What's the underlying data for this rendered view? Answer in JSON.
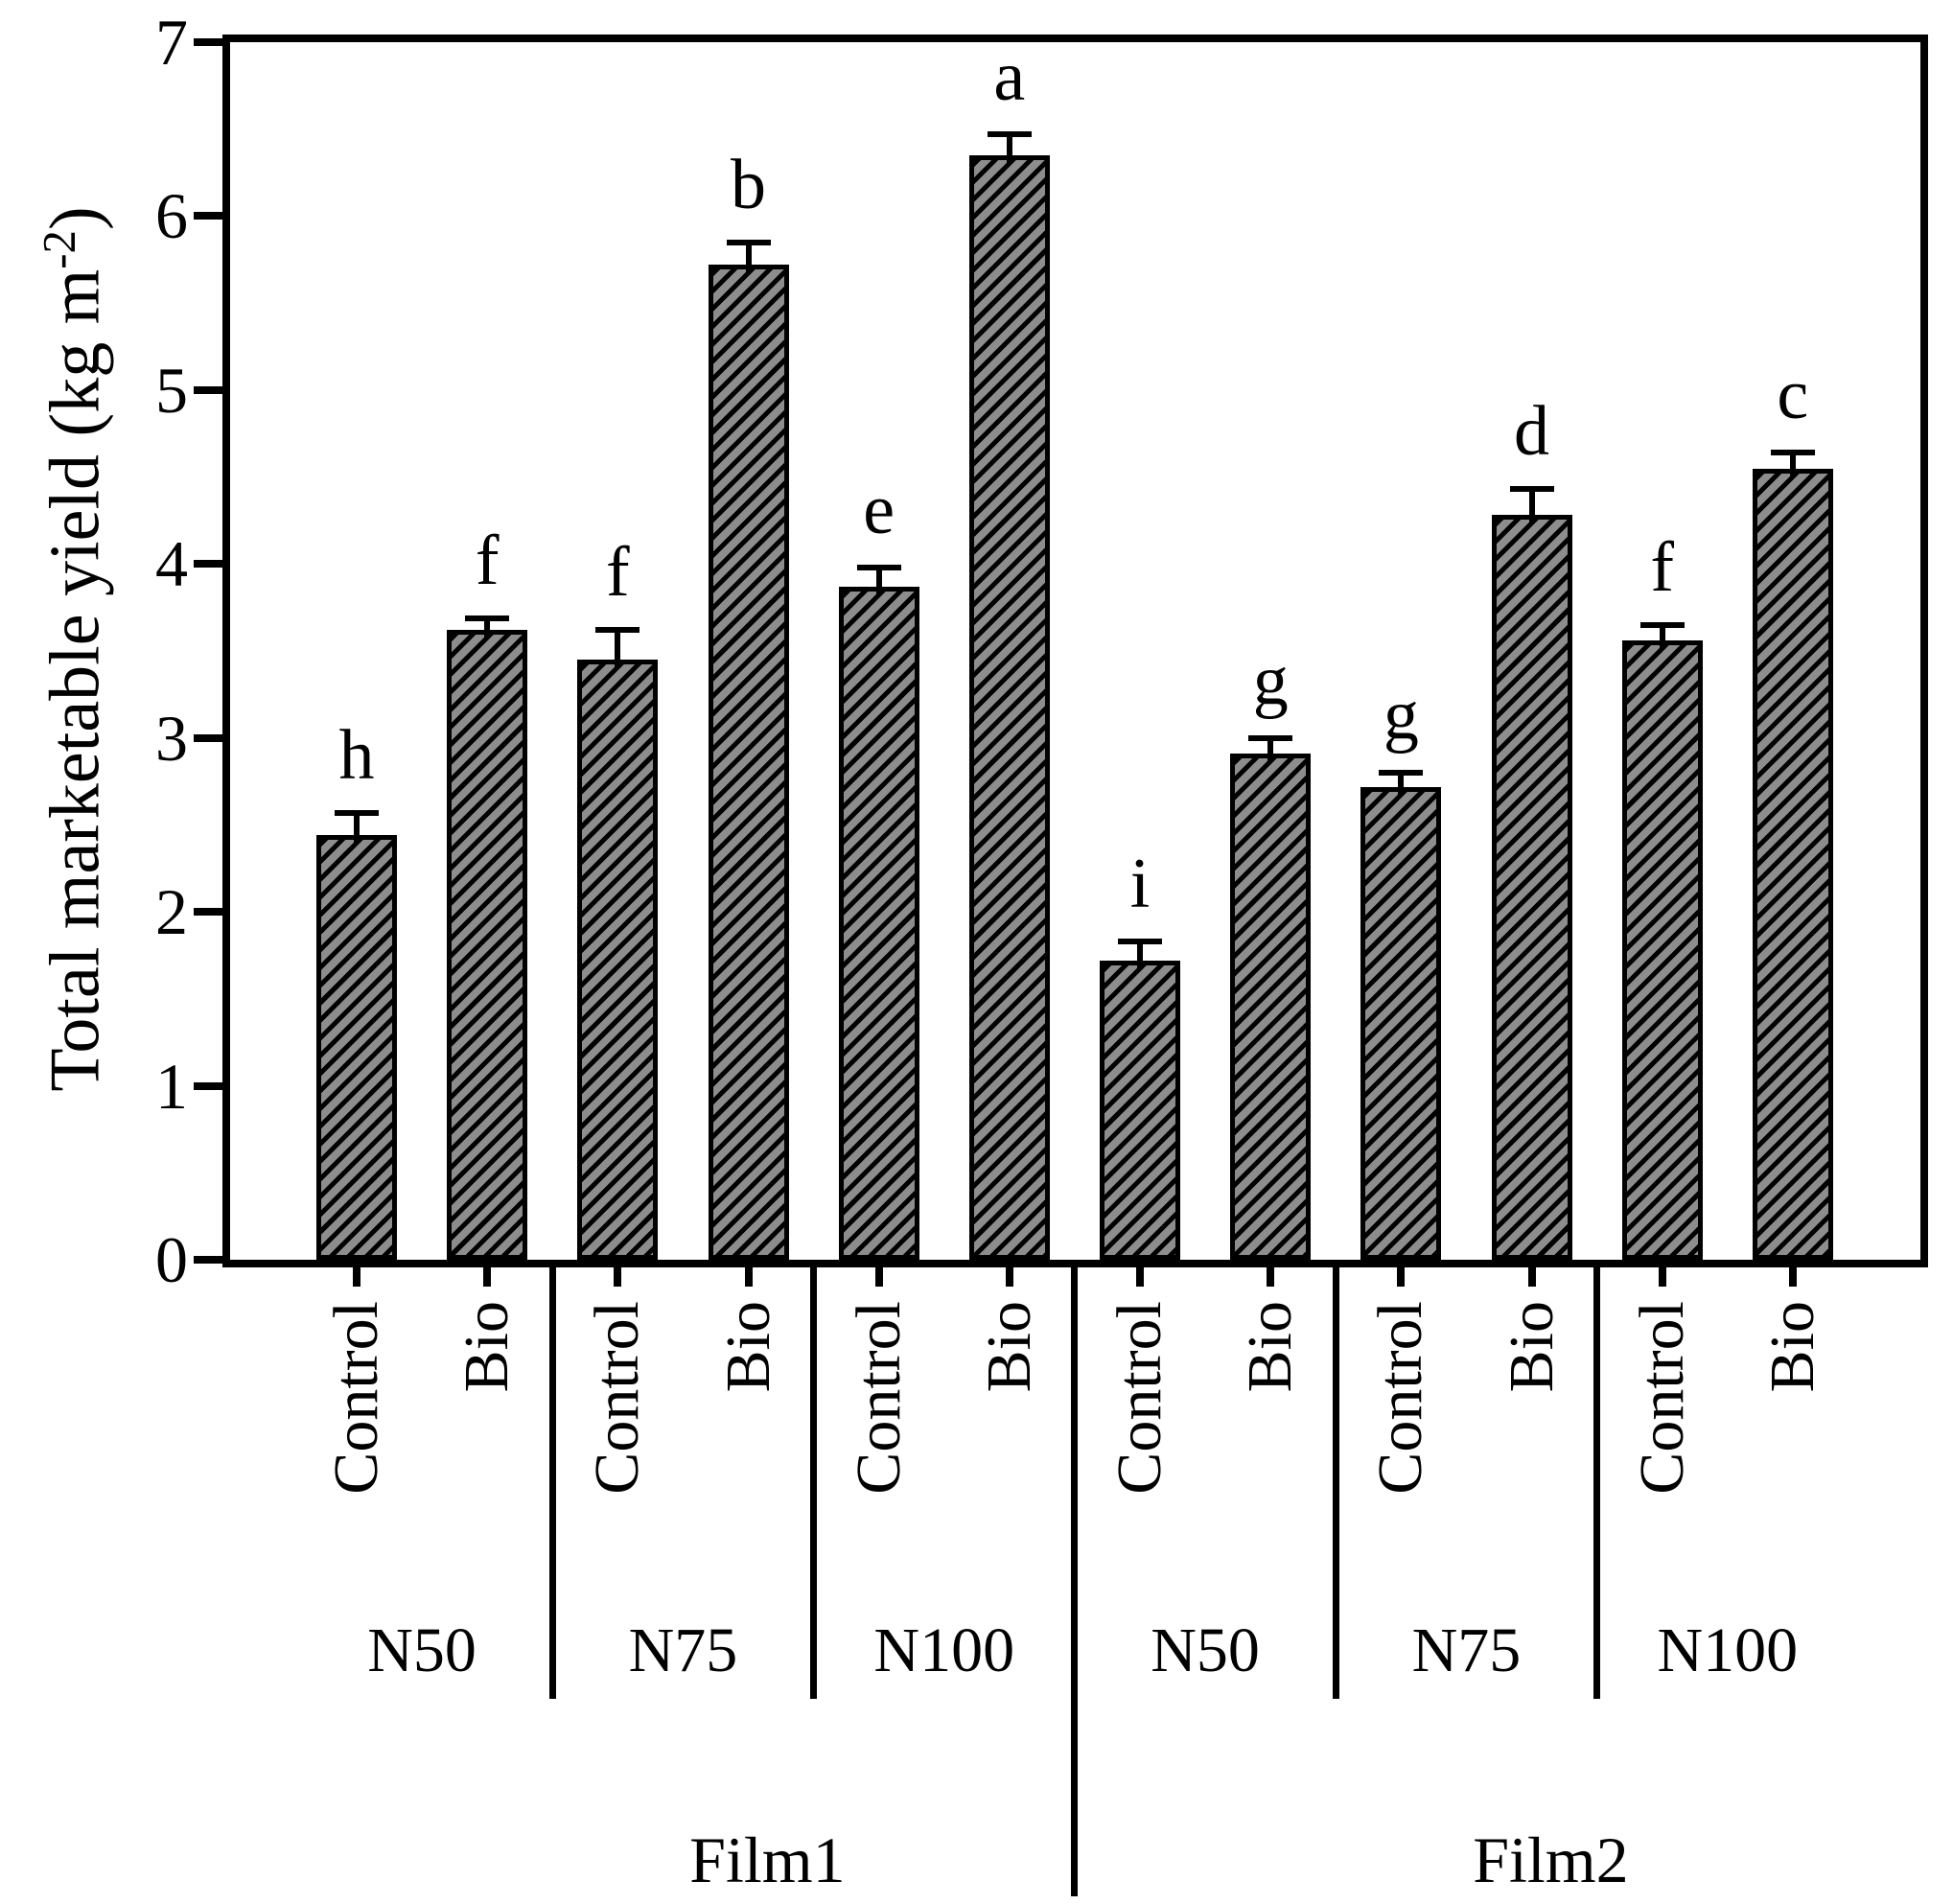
{
  "chart_data": {
    "type": "bar",
    "title": "",
    "y_axis": {
      "label_main": "Total marketable yield (kg m",
      "label_sup": "-2",
      "label_close": ")",
      "min": 0,
      "max": 7,
      "ticks": [
        0,
        1,
        2,
        3,
        4,
        5,
        6,
        7
      ]
    },
    "x_axis": {
      "treatment_labels": [
        "Control",
        "Bio"
      ],
      "films": [
        {
          "label": "Film1",
          "n_groups": [
            "N50",
            "N75",
            "N100"
          ]
        },
        {
          "label": "Film2",
          "n_groups": [
            "N50",
            "N75",
            "N100"
          ]
        }
      ]
    },
    "bars": [
      {
        "film": "Film1",
        "n": "N50",
        "treatment": "Control",
        "value": 2.44,
        "se": 0.13,
        "letter": "h"
      },
      {
        "film": "Film1",
        "n": "N50",
        "treatment": "Bio",
        "value": 3.62,
        "se": 0.07,
        "letter": "f"
      },
      {
        "film": "Film1",
        "n": "N75",
        "treatment": "Control",
        "value": 3.45,
        "se": 0.17,
        "letter": "f"
      },
      {
        "film": "Film1",
        "n": "N75",
        "treatment": "Bio",
        "value": 5.72,
        "se": 0.13,
        "letter": "b"
      },
      {
        "film": "Film1",
        "n": "N100",
        "treatment": "Control",
        "value": 3.87,
        "se": 0.11,
        "letter": "e"
      },
      {
        "film": "Film1",
        "n": "N100",
        "treatment": "Bio",
        "value": 6.35,
        "se": 0.12,
        "letter": "a"
      },
      {
        "film": "Film2",
        "n": "N50",
        "treatment": "Control",
        "value": 1.72,
        "se": 0.11,
        "letter": "i"
      },
      {
        "film": "Film2",
        "n": "N50",
        "treatment": "Bio",
        "value": 2.91,
        "se": 0.09,
        "letter": "g"
      },
      {
        "film": "Film2",
        "n": "N75",
        "treatment": "Control",
        "value": 2.72,
        "se": 0.08,
        "letter": "g"
      },
      {
        "film": "Film2",
        "n": "N75",
        "treatment": "Bio",
        "value": 4.28,
        "se": 0.15,
        "letter": "d"
      },
      {
        "film": "Film2",
        "n": "N100",
        "treatment": "Control",
        "value": 3.56,
        "se": 0.09,
        "letter": "f"
      },
      {
        "film": "Film2",
        "n": "N100",
        "treatment": "Bio",
        "value": 4.55,
        "se": 0.09,
        "letter": "c"
      }
    ],
    "layout": {
      "grid": false,
      "legend": "none",
      "error_bars": "upper-only",
      "bar_hatch": "forward-diagonal",
      "group_separators": "between-N-groups-and-films"
    }
  },
  "colors": {
    "background": "#ffffff",
    "bar_fill": "#8d8d8d",
    "hatch_line": "#000000",
    "outline": "#000000",
    "text": "#000000"
  }
}
